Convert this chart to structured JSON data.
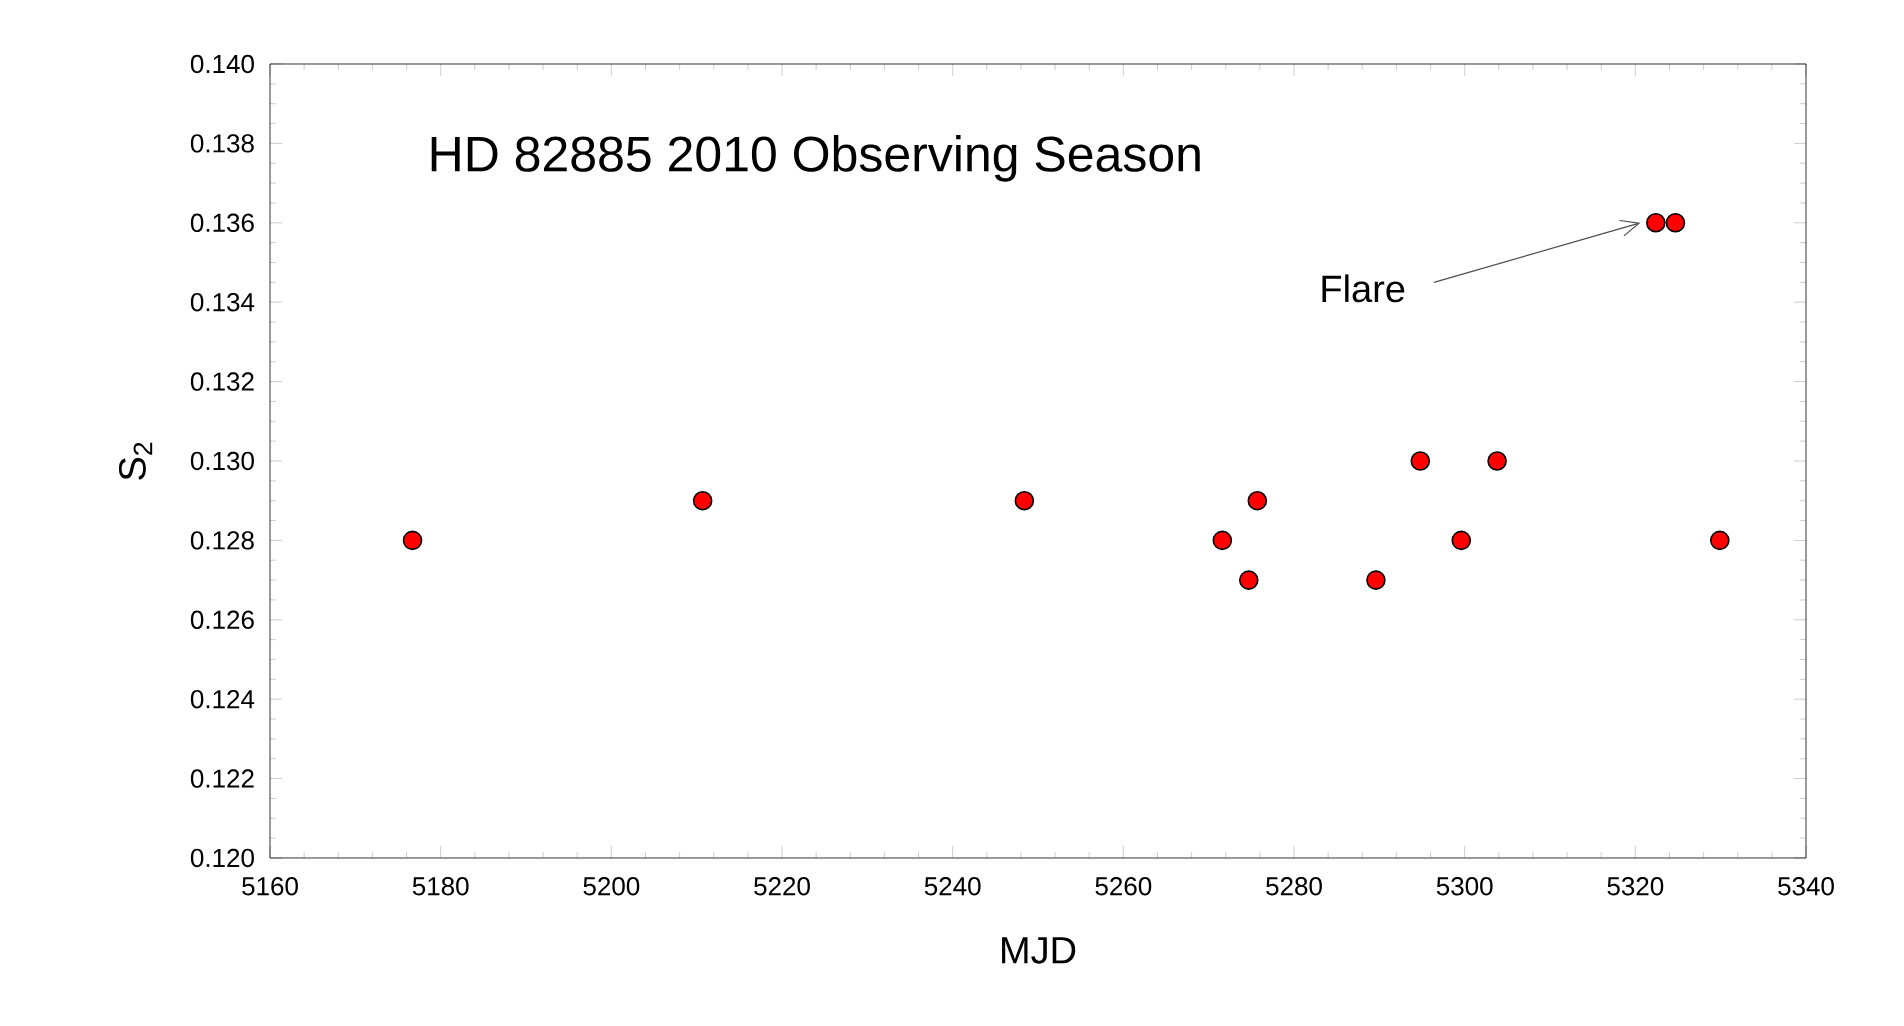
{
  "chart_data": {
    "type": "scatter",
    "title": "HD 82885   2010 Observing Season",
    "xlabel": "MJD",
    "ylabel": "S$_{2}$",
    "x": [
      5176.7,
      5210.7,
      5248.4,
      5271.6,
      5274.7,
      5275.7,
      5289.6,
      5294.8,
      5299.6,
      5303.8,
      5322.4,
      5324.7,
      5329.9
    ],
    "values": [
      0.128,
      0.129,
      0.129,
      0.128,
      0.127,
      0.129,
      0.127,
      0.13,
      0.128,
      0.13,
      0.136,
      0.136,
      0.128
    ],
    "color": "#ff0000",
    "marker": "circle",
    "xlim": [
      5160,
      5340
    ],
    "xticks": [
      5160,
      5180,
      5200,
      5220,
      5240,
      5260,
      5280,
      5300,
      5320,
      5340
    ],
    "ylim": [
      0.12,
      0.14
    ],
    "yticks": [
      {
        "value": 0.12,
        "label": "0.120"
      },
      {
        "value": 0.122,
        "label": "0.122"
      },
      {
        "value": 0.124,
        "label": "0.124"
      },
      {
        "value": 0.126,
        "label": "0.126"
      },
      {
        "value": 0.128,
        "label": "0.128"
      },
      {
        "value": 0.13,
        "label": "0.130"
      },
      {
        "value": 0.132,
        "label": "0.132"
      },
      {
        "value": 0.134,
        "label": "0.134"
      },
      {
        "value": 0.136,
        "label": "0.136"
      },
      {
        "value": 0.138,
        "label": "0.138"
      },
      {
        "value": 0.14,
        "label": "0.140"
      }
    ],
    "annotations": [
      {
        "text": "Flare",
        "x": 5322.4,
        "y": 0.136
      }
    ],
    "grid": false
  }
}
